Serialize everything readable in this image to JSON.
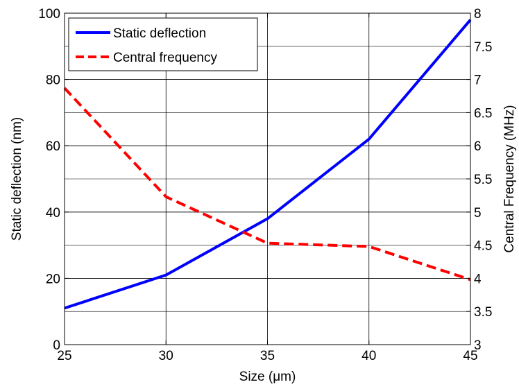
{
  "chart_data": {
    "type": "line",
    "x": [
      25,
      30,
      35,
      40,
      45
    ],
    "xlabel": "Size (μm)",
    "xlim": [
      25,
      45
    ],
    "xticks": [
      "25",
      "30",
      "35",
      "40",
      "45"
    ],
    "ylabel_left": "Static deflection (nm)",
    "ylim_left": [
      0,
      100
    ],
    "yticks_left": [
      "0",
      "20",
      "40",
      "60",
      "80",
      "100"
    ],
    "ylabel_right": "Central Frequency (MHz)",
    "ylim_right": [
      3,
      8
    ],
    "yticks_right": [
      "3",
      "3.5",
      "4",
      "4.5",
      "5",
      "5.5",
      "6",
      "6.5",
      "7",
      "7.5",
      "8"
    ],
    "grid": true,
    "legend_position": "top-left",
    "series": [
      {
        "name": "Static deflection",
        "axis": "left",
        "color": "#0000ff",
        "style": "solid",
        "values": [
          11,
          21,
          38,
          62,
          98
        ]
      },
      {
        "name": "Central frequency",
        "axis": "right",
        "color": "#ff0000",
        "style": "dashed",
        "values": [
          6.87,
          5.23,
          4.53,
          4.48,
          3.98
        ]
      }
    ]
  }
}
